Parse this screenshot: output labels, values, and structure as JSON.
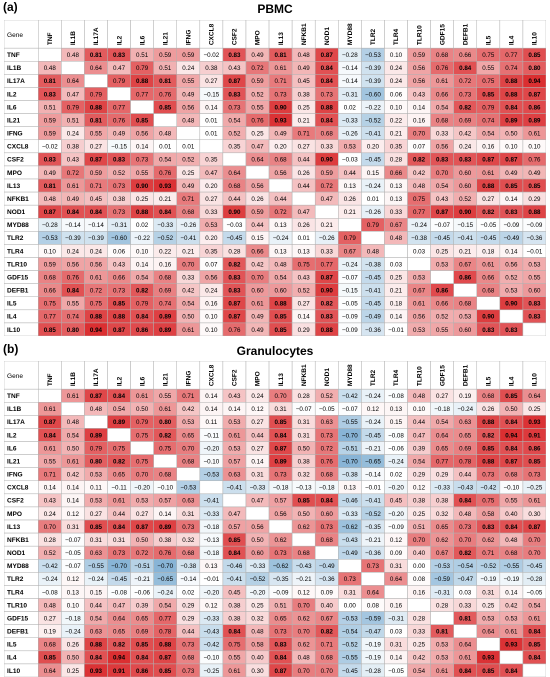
{
  "chart_data": [
    {
      "type": "heatmap",
      "panel": "(a)",
      "title": "PBMC",
      "corner": "Gene",
      "genes": [
        "TNF",
        "IL1B",
        "IL17A",
        "IL2",
        "IL6",
        "IL21",
        "IFNG",
        "CXCL8",
        "CSF2",
        "MPO",
        "IL13",
        "NFKB1",
        "NOD1",
        "MYD88",
        "TLR2",
        "TLR4",
        "TLR10",
        "GDF15",
        "DEFB1",
        "IL5",
        "IL4",
        "IL10"
      ],
      "values": [
        [
          null,
          0.48,
          0.81,
          0.83,
          0.51,
          0.59,
          0.59,
          -0.02,
          0.83,
          0.49,
          0.81,
          0.48,
          0.87,
          -0.28,
          -0.53,
          0.1,
          0.59,
          0.68,
          0.66,
          0.75,
          0.77,
          0.85
        ],
        [
          0.48,
          null,
          0.64,
          0.47,
          0.79,
          0.51,
          0.24,
          0.38,
          0.43,
          0.72,
          0.61,
          0.49,
          0.84,
          -0.14,
          -0.39,
          0.24,
          0.56,
          0.76,
          0.84,
          0.55,
          0.74,
          0.8
        ],
        [
          0.81,
          0.64,
          null,
          0.79,
          0.88,
          0.81,
          0.55,
          0.27,
          0.87,
          0.59,
          0.71,
          0.45,
          0.84,
          -0.14,
          -0.39,
          0.24,
          0.56,
          0.61,
          0.72,
          0.75,
          0.88,
          0.94
        ],
        [
          0.83,
          0.47,
          0.79,
          null,
          0.77,
          0.76,
          0.49,
          -0.15,
          0.83,
          0.52,
          0.73,
          0.38,
          0.73,
          -0.31,
          -0.6,
          0.06,
          0.43,
          0.66,
          0.73,
          0.85,
          0.88,
          0.87
        ],
        [
          0.51,
          0.79,
          0.88,
          0.77,
          null,
          0.85,
          0.56,
          0.14,
          0.73,
          0.55,
          0.9,
          0.25,
          0.88,
          0.02,
          -0.22,
          0.1,
          0.14,
          0.54,
          0.82,
          0.79,
          0.84,
          0.86
        ],
        [
          0.59,
          0.51,
          0.81,
          0.76,
          0.85,
          null,
          0.48,
          0.01,
          0.54,
          0.76,
          0.93,
          0.21,
          0.84,
          -0.33,
          -0.52,
          0.22,
          0.16,
          0.68,
          0.69,
          0.74,
          0.89,
          0.89
        ],
        [
          0.59,
          0.24,
          0.55,
          0.49,
          0.56,
          0.48,
          null,
          0.01,
          0.52,
          0.25,
          0.49,
          0.71,
          0.68,
          -0.26,
          -0.41,
          0.21,
          0.7,
          0.33,
          0.42,
          0.54,
          0.5,
          0.61
        ],
        [
          -0.02,
          0.38,
          0.27,
          -0.15,
          0.14,
          0.01,
          0.01,
          null,
          0.35,
          0.47,
          0.2,
          0.27,
          0.33,
          0.53,
          0.2,
          0.35,
          0.07,
          0.56,
          0.24,
          0.16,
          0.1,
          0.1
        ],
        [
          0.83,
          0.43,
          0.87,
          0.83,
          0.73,
          0.54,
          0.52,
          0.35,
          null,
          0.64,
          0.68,
          0.44,
          0.9,
          -0.03,
          -0.45,
          0.28,
          0.82,
          0.83,
          0.83,
          0.87,
          0.87,
          0.76
        ],
        [
          0.49,
          0.72,
          0.59,
          0.52,
          0.55,
          0.76,
          0.25,
          0.47,
          0.64,
          null,
          0.56,
          0.26,
          0.59,
          0.44,
          0.15,
          0.66,
          0.42,
          0.7,
          0.6,
          0.61,
          0.49,
          0.49
        ],
        [
          0.81,
          0.61,
          0.71,
          0.73,
          0.9,
          0.93,
          0.49,
          0.2,
          0.68,
          0.56,
          null,
          0.44,
          0.72,
          0.13,
          -0.24,
          0.13,
          0.48,
          0.54,
          0.6,
          0.88,
          0.85,
          0.85
        ],
        [
          0.48,
          0.49,
          0.45,
          0.38,
          0.25,
          0.21,
          0.71,
          0.27,
          0.44,
          0.26,
          0.44,
          null,
          0.47,
          0.26,
          0.01,
          0.13,
          0.75,
          0.43,
          0.52,
          0.27,
          0.14,
          0.29
        ],
        [
          0.87,
          0.84,
          0.84,
          0.73,
          0.88,
          0.84,
          0.68,
          0.33,
          0.9,
          0.59,
          0.72,
          0.47,
          null,
          0.21,
          -0.26,
          0.33,
          0.77,
          0.87,
          0.9,
          0.82,
          0.83,
          0.88
        ],
        [
          -0.28,
          -0.14,
          -0.14,
          -0.31,
          0.02,
          -0.33,
          -0.26,
          0.53,
          -0.03,
          0.44,
          0.13,
          0.26,
          0.21,
          null,
          0.79,
          0.67,
          -0.24,
          -0.07,
          -0.15,
          -0.05,
          -0.09,
          -0.09
        ],
        [
          -0.53,
          -0.39,
          -0.39,
          -0.6,
          -0.22,
          -0.52,
          -0.41,
          0.2,
          -0.45,
          0.15,
          -0.24,
          0.01,
          -0.26,
          0.79,
          null,
          0.48,
          -0.38,
          -0.45,
          -0.41,
          -0.45,
          -0.49,
          -0.36
        ],
        [
          0.1,
          0.24,
          0.24,
          0.06,
          0.1,
          0.22,
          0.21,
          0.35,
          0.28,
          0.66,
          0.13,
          0.13,
          0.33,
          0.67,
          0.48,
          null,
          0.03,
          0.25,
          0.21,
          0.18,
          0.14,
          -0.01
        ],
        [
          0.59,
          0.56,
          0.56,
          0.43,
          0.14,
          0.16,
          0.7,
          0.07,
          0.82,
          0.42,
          0.48,
          0.75,
          0.77,
          -0.24,
          -0.38,
          0.03,
          null,
          0.53,
          0.67,
          0.61,
          0.56,
          0.53
        ],
        [
          0.68,
          0.76,
          0.61,
          0.66,
          0.54,
          0.68,
          0.33,
          0.56,
          0.83,
          0.7,
          0.54,
          0.43,
          0.87,
          -0.07,
          -0.45,
          0.25,
          0.53,
          null,
          0.86,
          0.66,
          0.52,
          0.55
        ],
        [
          0.66,
          0.84,
          0.72,
          0.73,
          0.82,
          0.69,
          0.42,
          0.24,
          0.83,
          0.6,
          0.6,
          0.52,
          0.9,
          -0.15,
          -0.41,
          0.21,
          0.67,
          0.86,
          null,
          0.68,
          0.53,
          0.6
        ],
        [
          0.75,
          0.55,
          0.75,
          0.85,
          0.79,
          0.74,
          0.54,
          0.16,
          0.87,
          0.61,
          0.88,
          0.27,
          0.82,
          -0.05,
          -0.45,
          0.18,
          0.61,
          0.66,
          0.68,
          null,
          0.9,
          0.83
        ],
        [
          0.77,
          0.74,
          0.88,
          0.88,
          0.84,
          0.89,
          0.5,
          0.1,
          0.87,
          0.49,
          0.85,
          0.14,
          0.83,
          -0.09,
          -0.49,
          0.14,
          0.56,
          0.52,
          0.53,
          0.9,
          null,
          0.83
        ],
        [
          0.85,
          0.8,
          0.94,
          0.87,
          0.86,
          0.89,
          0.61,
          0.1,
          0.76,
          0.49,
          0.85,
          0.29,
          0.88,
          -0.09,
          -0.36,
          -0.01,
          0.53,
          0.55,
          0.6,
          0.83,
          0.83,
          null
        ]
      ]
    },
    {
      "type": "heatmap",
      "panel": "(b)",
      "title": "Granulocytes",
      "corner": "Gene",
      "genes": [
        "TNF",
        "IL1B",
        "IL17A",
        "IL2",
        "IL6",
        "IL21",
        "IFNG",
        "CXCL8",
        "CSF2",
        "MPO",
        "IL13",
        "NFKB1",
        "NOD1",
        "MYD88",
        "TLR2",
        "TLR4",
        "TLR10",
        "GDF15",
        "DEFB1",
        "IL5",
        "IL4",
        "IL10"
      ],
      "values": [
        [
          null,
          0.61,
          0.87,
          0.84,
          0.61,
          0.55,
          0.71,
          0.14,
          0.43,
          0.24,
          0.7,
          0.28,
          0.52,
          -0.42,
          -0.24,
          -0.08,
          0.48,
          0.27,
          0.19,
          0.68,
          0.85,
          0.64
        ],
        [
          0.61,
          null,
          0.48,
          0.54,
          0.5,
          0.61,
          0.42,
          0.14,
          0.14,
          0.12,
          0.31,
          -0.07,
          -0.05,
          -0.07,
          0.12,
          0.13,
          0.1,
          -0.18,
          -0.24,
          0.26,
          0.5,
          0.25
        ],
        [
          0.87,
          0.48,
          null,
          0.89,
          0.79,
          0.8,
          0.53,
          0.11,
          0.53,
          0.27,
          0.85,
          0.31,
          0.63,
          -0.55,
          -0.24,
          0.15,
          0.44,
          0.54,
          0.63,
          0.88,
          0.84,
          0.93
        ],
        [
          0.84,
          0.54,
          0.89,
          null,
          0.75,
          0.82,
          0.65,
          -0.11,
          0.61,
          0.44,
          0.84,
          0.31,
          0.73,
          -0.7,
          -0.45,
          -0.08,
          0.47,
          0.64,
          0.65,
          0.82,
          0.94,
          0.91
        ],
        [
          0.61,
          0.5,
          0.79,
          0.75,
          null,
          0.75,
          0.7,
          -0.2,
          0.53,
          0.27,
          0.87,
          0.5,
          0.72,
          -0.51,
          -0.21,
          -0.06,
          0.39,
          0.65,
          0.69,
          0.85,
          0.84,
          0.86
        ],
        [
          0.55,
          0.61,
          0.8,
          0.82,
          0.75,
          null,
          0.68,
          -0.1,
          0.57,
          0.14,
          0.89,
          0.38,
          0.76,
          -0.7,
          -0.65,
          -0.24,
          0.54,
          0.77,
          0.78,
          0.88,
          0.87,
          0.85
        ],
        [
          0.71,
          0.42,
          0.53,
          0.65,
          0.7,
          0.68,
          null,
          -0.53,
          0.63,
          0.31,
          0.73,
          0.32,
          0.68,
          -0.38,
          -0.14,
          0.02,
          0.29,
          0.29,
          0.44,
          0.73,
          0.68,
          0.73
        ],
        [
          0.14,
          0.14,
          0.11,
          -0.11,
          -0.2,
          -0.1,
          -0.53,
          null,
          -0.41,
          -0.33,
          -0.18,
          -0.13,
          -0.18,
          0.13,
          -0.01,
          -0.2,
          0.12,
          -0.33,
          -0.43,
          -0.42,
          -0.1,
          -0.25
        ],
        [
          0.43,
          0.14,
          0.53,
          0.61,
          0.53,
          0.57,
          0.63,
          -0.41,
          null,
          0.47,
          0.57,
          0.85,
          0.84,
          -0.46,
          -0.41,
          0.45,
          0.38,
          0.38,
          0.84,
          0.75,
          0.55,
          0.61
        ],
        [
          0.24,
          0.12,
          0.27,
          0.44,
          0.27,
          0.14,
          0.31,
          -0.33,
          0.47,
          null,
          0.56,
          0.5,
          0.6,
          -0.33,
          -0.52,
          -0.2,
          0.25,
          0.32,
          0.48,
          0.58,
          0.4,
          0.3
        ],
        [
          0.7,
          0.31,
          0.85,
          0.84,
          0.87,
          0.89,
          0.73,
          -0.18,
          0.57,
          0.56,
          null,
          0.62,
          0.73,
          -0.62,
          -0.35,
          -0.09,
          0.51,
          0.65,
          0.73,
          0.83,
          0.84,
          0.87
        ],
        [
          0.28,
          -0.07,
          0.31,
          0.31,
          0.5,
          0.38,
          0.32,
          -0.13,
          0.85,
          0.5,
          0.62,
          null,
          0.68,
          -0.43,
          -0.21,
          0.12,
          0.7,
          0.62,
          0.7,
          0.62,
          0.48,
          0.7
        ],
        [
          0.52,
          -0.05,
          0.63,
          0.73,
          0.72,
          0.76,
          0.68,
          -0.18,
          0.84,
          0.6,
          0.73,
          0.68,
          null,
          -0.49,
          -0.36,
          0.09,
          0.4,
          0.67,
          0.82,
          0.71,
          0.68,
          0.7
        ],
        [
          -0.42,
          -0.07,
          -0.55,
          -0.7,
          -0.51,
          -0.7,
          -0.38,
          0.13,
          -0.46,
          -0.33,
          -0.62,
          -0.43,
          -0.49,
          null,
          0.73,
          0.31,
          0.0,
          -0.53,
          -0.54,
          -0.52,
          -0.55,
          -0.45
        ],
        [
          -0.24,
          0.12,
          -0.24,
          -0.45,
          -0.21,
          -0.65,
          -0.14,
          -0.01,
          -0.41,
          -0.52,
          -0.35,
          -0.21,
          -0.36,
          0.73,
          null,
          0.64,
          0.08,
          -0.59,
          -0.47,
          -0.19,
          -0.19,
          -0.28
        ],
        [
          -0.08,
          0.13,
          0.15,
          -0.08,
          -0.06,
          -0.24,
          0.02,
          -0.2,
          0.45,
          -0.2,
          -0.09,
          0.12,
          0.09,
          0.31,
          0.64,
          null,
          0.16,
          -0.31,
          0.03,
          0.31,
          0.14,
          -0.05
        ],
        [
          0.48,
          0.1,
          0.44,
          0.47,
          0.39,
          0.54,
          0.29,
          0.12,
          0.38,
          0.25,
          0.51,
          0.7,
          0.4,
          0.0,
          0.08,
          0.16,
          null,
          0.28,
          0.33,
          0.25,
          0.42,
          0.54
        ],
        [
          0.27,
          -0.18,
          0.54,
          0.64,
          0.65,
          0.77,
          0.29,
          -0.33,
          0.38,
          0.32,
          0.65,
          0.62,
          0.67,
          -0.53,
          -0.59,
          -0.31,
          0.28,
          null,
          0.81,
          0.53,
          0.53,
          0.61
        ],
        [
          0.19,
          -0.24,
          0.63,
          0.65,
          0.69,
          0.78,
          0.44,
          -0.43,
          0.84,
          0.48,
          0.73,
          0.7,
          0.82,
          -0.54,
          -0.47,
          0.03,
          0.33,
          0.81,
          null,
          0.64,
          0.61,
          0.84
        ],
        [
          0.68,
          0.26,
          0.88,
          0.82,
          0.85,
          0.88,
          0.73,
          -0.42,
          0.75,
          0.58,
          0.83,
          0.62,
          0.71,
          -0.52,
          -0.19,
          0.31,
          0.25,
          0.53,
          0.64,
          null,
          0.93,
          0.85
        ],
        [
          0.85,
          0.5,
          0.84,
          0.94,
          0.84,
          0.87,
          0.68,
          -0.1,
          0.55,
          0.4,
          0.84,
          0.48,
          0.68,
          -0.55,
          -0.19,
          0.14,
          0.42,
          0.53,
          0.61,
          0.93,
          null,
          0.84
        ],
        [
          0.64,
          0.25,
          0.93,
          0.91,
          0.86,
          0.85,
          0.73,
          -0.25,
          0.61,
          0.3,
          0.87,
          0.7,
          0.7,
          -0.45,
          -0.28,
          -0.05,
          0.54,
          0.61,
          0.84,
          0.85,
          0.84,
          null
        ]
      ]
    }
  ],
  "colors": {
    "positive": "#d7191c",
    "negative": "#2c7bb6",
    "neutral": "#ffffff",
    "header_bg": "#ffffff",
    "grid": "#b0b0b0"
  }
}
